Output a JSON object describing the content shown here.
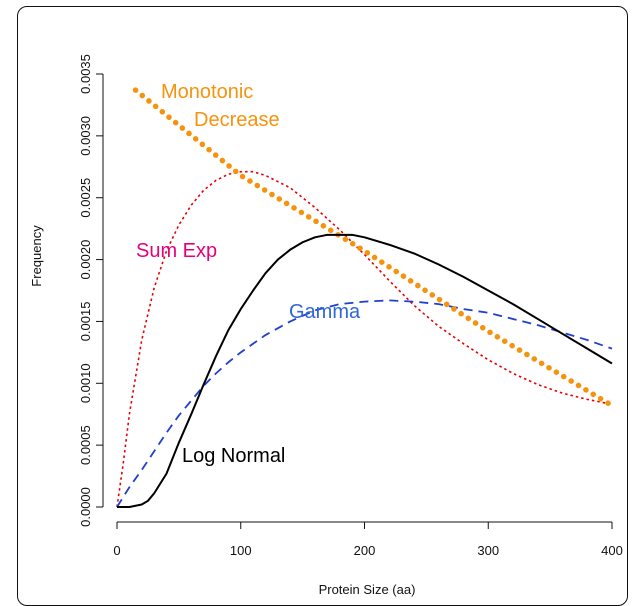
{
  "chart_data": {
    "type": "line",
    "title": "",
    "xlabel": "Protein Size (aa)",
    "ylabel": "Frequency",
    "xlim": [
      0,
      400
    ],
    "ylim": [
      0,
      0.0035
    ],
    "x_ticks": [
      "0",
      "100",
      "200",
      "300",
      "400"
    ],
    "y_ticks": [
      "0.0000",
      "0.0005",
      "0.0010",
      "0.0015",
      "0.0020",
      "0.0025",
      "0.0030",
      "0.0035"
    ],
    "grid": false,
    "series": [
      {
        "name": "Log Normal",
        "color": "#000000",
        "style": "solid",
        "x": [
          0,
          10,
          20,
          25,
          30,
          40,
          50,
          60,
          70,
          80,
          90,
          100,
          110,
          120,
          130,
          140,
          150,
          160,
          170,
          180,
          190,
          200,
          220,
          240,
          260,
          280,
          300,
          320,
          340,
          360,
          380,
          400
        ],
        "y": [
          0.0,
          0.0,
          2e-05,
          5e-05,
          0.00011,
          0.00027,
          0.00052,
          0.00075,
          0.00099,
          0.00122,
          0.00143,
          0.0016,
          0.00175,
          0.00189,
          0.002,
          0.00208,
          0.00214,
          0.00218,
          0.0022,
          0.0022,
          0.0022,
          0.00218,
          0.00212,
          0.00205,
          0.00196,
          0.00186,
          0.00175,
          0.00164,
          0.00152,
          0.0014,
          0.00128,
          0.00116
        ]
      },
      {
        "name": "Gamma",
        "color": "#1f3fd0",
        "style": "dashed",
        "x": [
          0,
          10,
          20,
          30,
          40,
          50,
          60,
          70,
          80,
          90,
          100,
          120,
          140,
          160,
          180,
          200,
          220,
          240,
          260,
          280,
          300,
          320,
          340,
          360,
          380,
          400
        ],
        "y": [
          0.0,
          0.00016,
          0.0003,
          0.00045,
          0.0006,
          0.00074,
          0.00086,
          0.00098,
          0.00108,
          0.00117,
          0.00125,
          0.00139,
          0.0015,
          0.00159,
          0.00164,
          0.00166,
          0.00167,
          0.00166,
          0.00164,
          0.0016,
          0.00157,
          0.00152,
          0.00147,
          0.00141,
          0.00135,
          0.00128
        ]
      },
      {
        "name": "Sum Exp",
        "color": "#e60000",
        "style": "dotted",
        "x": [
          0,
          5,
          10,
          20,
          30,
          40,
          50,
          60,
          70,
          80,
          90,
          100,
          110,
          120,
          140,
          160,
          180,
          200,
          220,
          240,
          260,
          280,
          300,
          320,
          340,
          360,
          380,
          400
        ],
        "y": [
          0.0,
          0.00035,
          0.00075,
          0.00135,
          0.00177,
          0.00207,
          0.00228,
          0.00244,
          0.00256,
          0.00264,
          0.00269,
          0.00271,
          0.00271,
          0.00268,
          0.00258,
          0.00242,
          0.00224,
          0.00204,
          0.00183,
          0.00163,
          0.00146,
          0.00132,
          0.00119,
          0.00108,
          0.00099,
          0.00092,
          0.00087,
          0.00083
        ]
      },
      {
        "name": "Monotonic Decrease",
        "color": "#f5930f",
        "style": "thick-dotted",
        "x": [
          15,
          100,
          200,
          300,
          400
        ],
        "y": [
          0.00337,
          0.00268,
          0.00207,
          0.00142,
          0.00082
        ]
      }
    ],
    "annotations": [
      {
        "text": "Monotonic",
        "color": "#f5930f"
      },
      {
        "text": "Decrease",
        "color": "#f5930f"
      },
      {
        "text": "Sum Exp",
        "color": "#e6007a"
      },
      {
        "text": "Gamma",
        "color": "#2f66d6"
      },
      {
        "text": "Log Normal",
        "color": "#000000"
      }
    ]
  }
}
